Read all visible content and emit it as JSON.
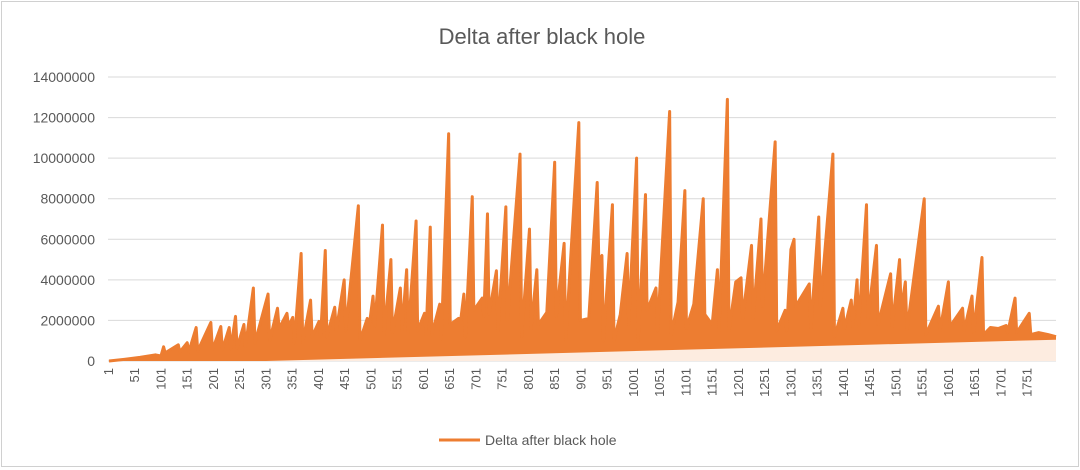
{
  "chart_data": {
    "type": "line",
    "title": "Delta after black hole",
    "xlabel": "",
    "ylabel": "",
    "ylim": [
      0,
      14000000
    ],
    "yticks": [
      "0",
      "2000000",
      "4000000",
      "6000000",
      "8000000",
      "10000000",
      "12000000",
      "14000000"
    ],
    "xlim": [
      1,
      1805
    ],
    "xticks": [
      "1",
      "51",
      "101",
      "151",
      "201",
      "251",
      "301",
      "351",
      "401",
      "451",
      "501",
      "551",
      "601",
      "651",
      "701",
      "751",
      "801",
      "851",
      "901",
      "951",
      "1001",
      "1051",
      "1101",
      "1151",
      "1201",
      "1251",
      "1301",
      "1351",
      "1401",
      "1451",
      "1501",
      "1551",
      "1601",
      "1651",
      "1701",
      "1751"
    ],
    "grid": true,
    "legend_position": "bottom",
    "series": [
      {
        "name": "Delta after black hole",
        "color": "#ED7D31",
        "points": [
          [
            1,
            0
          ],
          [
            30,
            80000
          ],
          [
            60,
            180000
          ],
          [
            90,
            300000
          ],
          [
            100,
            250000
          ],
          [
            105,
            700000
          ],
          [
            108,
            400000
          ],
          [
            133,
            800000
          ],
          [
            136,
            450000
          ],
          [
            150,
            900000
          ],
          [
            153,
            450000
          ],
          [
            167,
            1650000
          ],
          [
            170,
            500000
          ],
          [
            195,
            1900000
          ],
          [
            198,
            550000
          ],
          [
            214,
            1700000
          ],
          [
            217,
            550000
          ],
          [
            230,
            1650000
          ],
          [
            233,
            600000
          ],
          [
            242,
            2200000
          ],
          [
            245,
            650000
          ],
          [
            258,
            1800000
          ],
          [
            261,
            700000
          ],
          [
            276,
            3600000
          ],
          [
            279,
            900000
          ],
          [
            304,
            3300000
          ],
          [
            307,
            1000000
          ],
          [
            322,
            2600000
          ],
          [
            325,
            1600000
          ],
          [
            340,
            2350000
          ],
          [
            343,
            1700000
          ],
          [
            351,
            2150000
          ],
          [
            354,
            900000
          ],
          [
            367,
            5300000
          ],
          [
            370,
            900000
          ],
          [
            385,
            3000000
          ],
          [
            388,
            1200000
          ],
          [
            401,
            1950000
          ],
          [
            404,
            1200000
          ],
          [
            413,
            5450000
          ],
          [
            416,
            1200000
          ],
          [
            431,
            2650000
          ],
          [
            434,
            1500000
          ],
          [
            449,
            4000000
          ],
          [
            452,
            1500000
          ],
          [
            476,
            7650000
          ],
          [
            479,
            1000000
          ],
          [
            493,
            2100000
          ],
          [
            496,
            1600000
          ],
          [
            504,
            3200000
          ],
          [
            507,
            1700000
          ],
          [
            522,
            6700000
          ],
          [
            525,
            1300000
          ],
          [
            538,
            5000000
          ],
          [
            541,
            1400000
          ],
          [
            556,
            3600000
          ],
          [
            559,
            1500000
          ],
          [
            568,
            4500000
          ],
          [
            571,
            1400000
          ],
          [
            586,
            6900000
          ],
          [
            589,
            1500000
          ],
          [
            602,
            2350000
          ],
          [
            605,
            1300000
          ],
          [
            613,
            6600000
          ],
          [
            616,
            1300000
          ],
          [
            631,
            2800000
          ],
          [
            634,
            1100000
          ],
          [
            648,
            11200000
          ],
          [
            651,
            1800000
          ],
          [
            667,
            2100000
          ],
          [
            670,
            1800000
          ],
          [
            677,
            3300000
          ],
          [
            680,
            1200000
          ],
          [
            693,
            8100000
          ],
          [
            696,
            2500000
          ],
          [
            712,
            3100000
          ],
          [
            715,
            2200000
          ],
          [
            722,
            7250000
          ],
          [
            725,
            2300000
          ],
          [
            739,
            4450000
          ],
          [
            742,
            1500000
          ],
          [
            757,
            7600000
          ],
          [
            760,
            2000000
          ],
          [
            784,
            10200000
          ],
          [
            787,
            1200000
          ],
          [
            802,
            6500000
          ],
          [
            805,
            1600000
          ],
          [
            816,
            4500000
          ],
          [
            819,
            1800000
          ],
          [
            835,
            2400000
          ],
          [
            850,
            9800000
          ],
          [
            853,
            2200000
          ],
          [
            868,
            5800000
          ],
          [
            871,
            1000000
          ],
          [
            896,
            11750000
          ],
          [
            899,
            2000000
          ],
          [
            915,
            2100000
          ],
          [
            931,
            8800000
          ],
          [
            934,
            5000000
          ],
          [
            940,
            5200000
          ],
          [
            943,
            1000000
          ],
          [
            960,
            7700000
          ],
          [
            963,
            1000000
          ],
          [
            975,
            2300000
          ],
          [
            988,
            5300000
          ],
          [
            991,
            1800000
          ],
          [
            1006,
            10000000
          ],
          [
            1009,
            1000000
          ],
          [
            1023,
            8200000
          ],
          [
            1026,
            2500000
          ],
          [
            1043,
            3600000
          ],
          [
            1046,
            1500000
          ],
          [
            1069,
            12300000
          ],
          [
            1072,
            1300000
          ],
          [
            1085,
            2900000
          ],
          [
            1098,
            8400000
          ],
          [
            1101,
            1600000
          ],
          [
            1115,
            2800000
          ],
          [
            1133,
            8000000
          ],
          [
            1136,
            2300000
          ],
          [
            1150,
            1800000
          ],
          [
            1160,
            4500000
          ],
          [
            1163,
            1500000
          ],
          [
            1179,
            12900000
          ],
          [
            1182,
            1500000
          ],
          [
            1195,
            3900000
          ],
          [
            1205,
            4100000
          ],
          [
            1208,
            2100000
          ],
          [
            1225,
            5700000
          ],
          [
            1228,
            2100000
          ],
          [
            1243,
            7000000
          ],
          [
            1246,
            2700000
          ],
          [
            1270,
            10800000
          ],
          [
            1273,
            1500000
          ],
          [
            1289,
            2500000
          ],
          [
            1292,
            1500000
          ],
          [
            1300,
            5500000
          ],
          [
            1306,
            6000000
          ],
          [
            1309,
            2700000
          ],
          [
            1335,
            3800000
          ],
          [
            1338,
            1600000
          ],
          [
            1353,
            7100000
          ],
          [
            1356,
            2700000
          ],
          [
            1380,
            10200000
          ],
          [
            1383,
            1200000
          ],
          [
            1399,
            2600000
          ],
          [
            1402,
            1600000
          ],
          [
            1415,
            3000000
          ],
          [
            1418,
            1700000
          ],
          [
            1426,
            4000000
          ],
          [
            1429,
            1700000
          ],
          [
            1444,
            7700000
          ],
          [
            1447,
            2100000
          ],
          [
            1463,
            5700000
          ],
          [
            1466,
            1800000
          ],
          [
            1490,
            4300000
          ],
          [
            1493,
            1700000
          ],
          [
            1507,
            5000000
          ],
          [
            1510,
            2500000
          ],
          [
            1518,
            3900000
          ],
          [
            1521,
            1500000
          ],
          [
            1554,
            8000000
          ],
          [
            1557,
            1300000
          ],
          [
            1581,
            2700000
          ],
          [
            1584,
            1500000
          ],
          [
            1600,
            3900000
          ],
          [
            1603,
            1700000
          ],
          [
            1627,
            2600000
          ],
          [
            1630,
            1500000
          ],
          [
            1645,
            3200000
          ],
          [
            1648,
            1400000
          ],
          [
            1664,
            5100000
          ],
          [
            1667,
            1300000
          ],
          [
            1680,
            1650000
          ],
          [
            1695,
            1600000
          ],
          [
            1710,
            1750000
          ],
          [
            1713,
            1400000
          ],
          [
            1727,
            3100000
          ],
          [
            1730,
            1400000
          ],
          [
            1754,
            2350000
          ],
          [
            1757,
            1300000
          ],
          [
            1772,
            1400000
          ],
          [
            1790,
            1300000
          ],
          [
            1805,
            1200000
          ]
        ]
      }
    ]
  }
}
